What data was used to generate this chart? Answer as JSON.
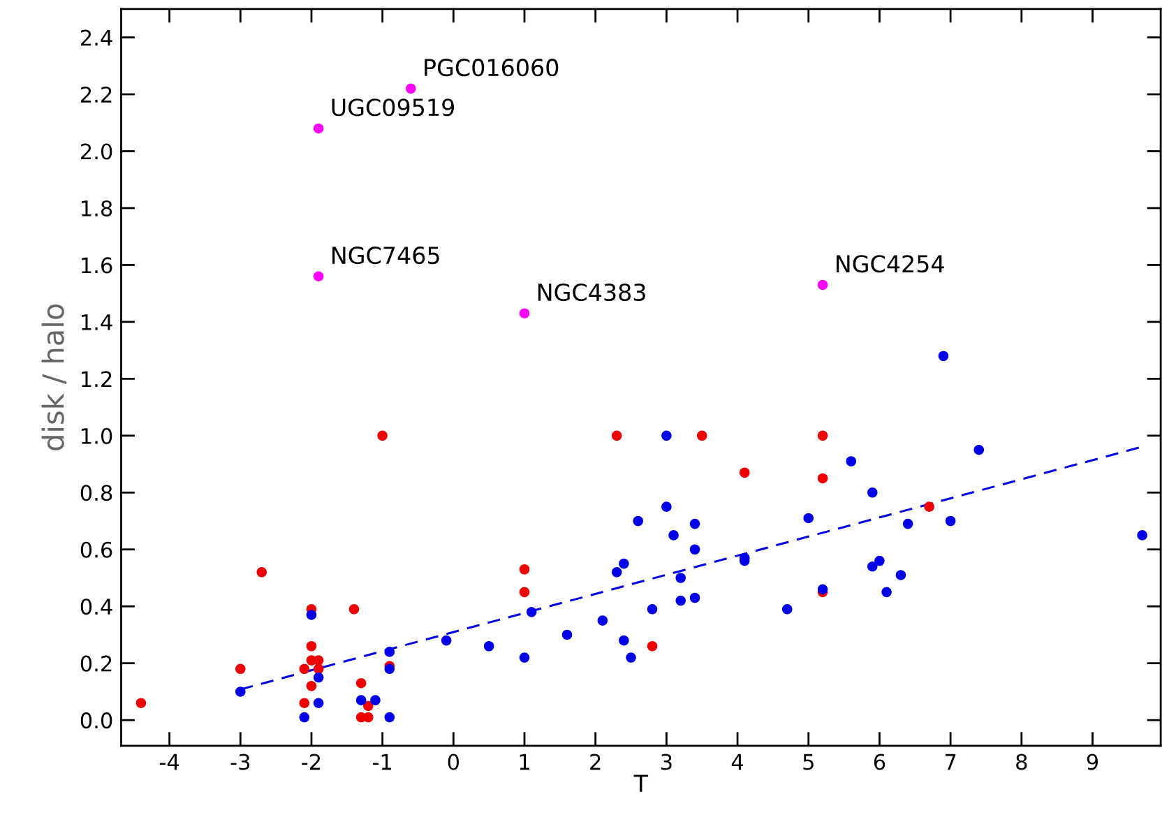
{
  "chart_data": {
    "type": "scatter",
    "xlabel": "T",
    "ylabel": "disk / halo",
    "xlim": [
      -4.68,
      9.96
    ],
    "ylim": [
      -0.09,
      2.5
    ],
    "xticks": [
      -4,
      -3,
      -2,
      -1,
      0,
      1,
      2,
      3,
      4,
      5,
      6,
      7,
      8,
      9
    ],
    "yticks": [
      {
        "value": 0,
        "label": "0.0"
      },
      {
        "value": 0.2,
        "label": "0.2"
      },
      {
        "value": 0.4,
        "label": "0.4"
      },
      {
        "value": 0.6,
        "label": "0.6"
      },
      {
        "value": 0.8,
        "label": "0.8"
      },
      {
        "value": 1.0,
        "label": "1.0"
      },
      {
        "value": 1.2,
        "label": "1.2"
      },
      {
        "value": 1.4,
        "label": "1.4"
      },
      {
        "value": 1.6,
        "label": "1.6"
      },
      {
        "value": 1.8,
        "label": "1.8"
      },
      {
        "value": 2.0,
        "label": "2.0"
      },
      {
        "value": 2.2,
        "label": "2.2"
      },
      {
        "value": 2.4,
        "label": "2.4"
      }
    ],
    "grid": false,
    "legend": false,
    "marker": "circle",
    "series": [
      {
        "color": "#ee0000",
        "x": [
          -4.4,
          -3.0,
          -2.7,
          -2.0,
          -1.4,
          -2.0,
          -2.0,
          -1.9,
          -2.1,
          -1.9,
          -2.0,
          -2.1,
          -1.3,
          -1.2,
          -1.3,
          -1.2,
          -0.9,
          -1.0,
          1.0,
          1.0,
          2.3,
          3.5,
          2.8,
          4.1,
          5.2,
          5.2,
          5.2,
          6.7
        ],
        "values": [
          0.06,
          0.18,
          0.52,
          0.39,
          0.39,
          0.26,
          0.21,
          0.21,
          0.18,
          0.18,
          0.12,
          0.06,
          0.13,
          0.05,
          0.01,
          0.01,
          0.19,
          1.0,
          0.53,
          0.45,
          1.0,
          1.0,
          0.26,
          0.87,
          1.0,
          0.85,
          0.45,
          0.75
        ]
      },
      {
        "color": "#0000e6",
        "x": [
          -3.0,
          -2.0,
          -1.9,
          -1.9,
          -2.1,
          -1.3,
          -1.1,
          -0.9,
          -0.9,
          -0.9,
          -0.1,
          0.5,
          1.0,
          1.1,
          1.6,
          2.1,
          2.4,
          2.5,
          2.8,
          2.3,
          2.4,
          2.6,
          3.0,
          3.1,
          3.4,
          3.4,
          3.2,
          3.2,
          3.4,
          3.0,
          4.1,
          4.1,
          4.7,
          5.0,
          5.6,
          5.9,
          5.9,
          6.0,
          6.3,
          6.1,
          5.2,
          6.4,
          7.0,
          7.4,
          6.9,
          9.7
        ],
        "values": [
          0.1,
          0.37,
          0.15,
          0.06,
          0.01,
          0.07,
          0.07,
          0.24,
          0.18,
          0.01,
          0.28,
          0.26,
          0.22,
          0.38,
          0.3,
          0.35,
          0.28,
          0.22,
          0.39,
          0.52,
          0.55,
          0.7,
          0.75,
          0.65,
          0.69,
          0.6,
          0.5,
          0.42,
          0.43,
          1.0,
          0.57,
          0.56,
          0.39,
          0.71,
          0.91,
          0.8,
          0.54,
          0.56,
          0.51,
          0.45,
          0.46,
          0.69,
          0.7,
          0.95,
          1.28,
          0.65
        ]
      },
      {
        "color": "#ff00ff",
        "x": [
          -1.9,
          -0.6,
          -1.9,
          1.0,
          5.2
        ],
        "values": [
          2.08,
          2.22,
          1.56,
          1.43,
          1.53
        ]
      },
      {
        "type": "line",
        "color": "#0000e6",
        "line_style": "dashed",
        "marker": "none",
        "x": [
          -3.0,
          9.7
        ],
        "values": [
          0.108,
          0.961
        ]
      }
    ],
    "annotations": [
      {
        "text": "UGC09519",
        "x": -1.9,
        "y": 2.08
      },
      {
        "text": "PGC016060",
        "x": -0.6,
        "y": 2.22
      },
      {
        "text": "NGC7465",
        "x": -1.9,
        "y": 1.56
      },
      {
        "text": "NGC4383",
        "x": 1.0,
        "y": 1.43
      },
      {
        "text": "NGC4254",
        "x": 5.2,
        "y": 1.53
      }
    ]
  }
}
